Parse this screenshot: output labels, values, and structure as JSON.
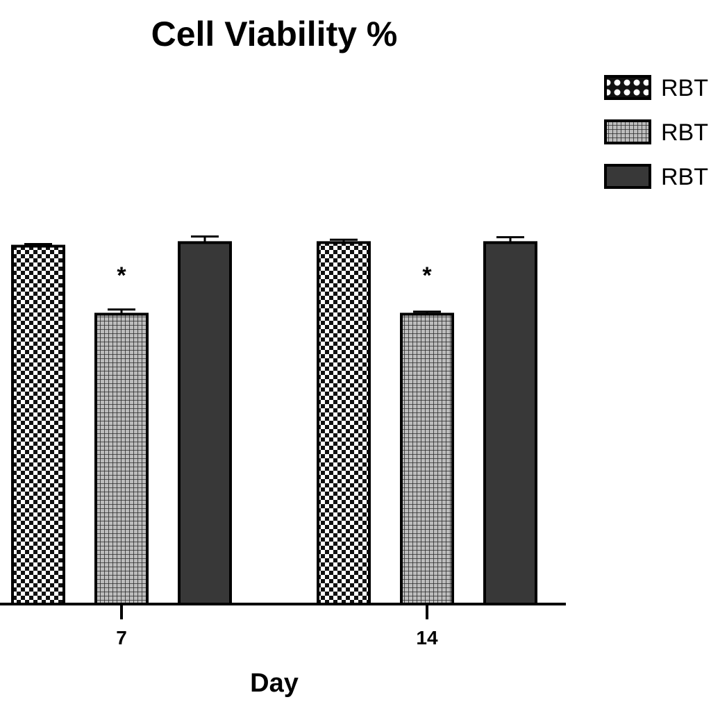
{
  "chart_data": {
    "type": "bar",
    "title": "Cell Viability %",
    "xlabel": "Day",
    "ylabel": "",
    "categories": [
      "7",
      "14"
    ],
    "ylim": [
      0,
      110
    ],
    "grid": false,
    "legend_position": "top-right",
    "series": [
      {
        "name": "RBT",
        "pattern": "checker",
        "color": "#222222",
        "values": [
          100,
          101
        ],
        "errors": [
          0.6,
          0.8
        ]
      },
      {
        "name": "RBT",
        "pattern": "grid",
        "color": "#555555",
        "values": [
          81,
          81
        ],
        "errors": [
          1.3,
          0.7
        ]
      },
      {
        "name": "RBT",
        "pattern": "solid",
        "color": "#383838",
        "values": [
          101,
          101
        ],
        "errors": [
          1.7,
          1.5
        ]
      }
    ],
    "annotations": [
      {
        "category": "7",
        "series": 1,
        "text": "*"
      },
      {
        "category": "14",
        "series": 1,
        "text": "*"
      }
    ]
  }
}
